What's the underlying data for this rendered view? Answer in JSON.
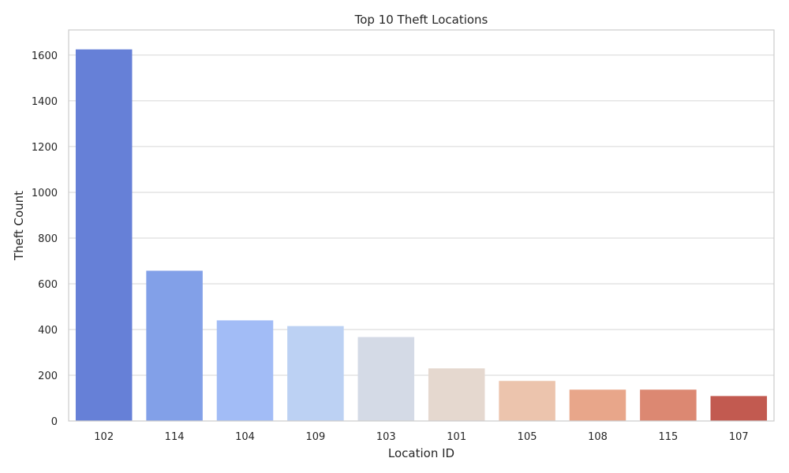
{
  "chart_data": {
    "type": "bar",
    "title": "Top 10 Theft Locations",
    "xlabel": "Location ID",
    "ylabel": "Theft Count",
    "categories": [
      "102",
      "114",
      "104",
      "109",
      "103",
      "101",
      "105",
      "108",
      "115",
      "107"
    ],
    "values": [
      1625,
      657,
      440,
      415,
      367,
      230,
      175,
      137,
      137,
      109
    ],
    "ylim": [
      0,
      1710
    ],
    "yticks": [
      0,
      200,
      400,
      600,
      800,
      1000,
      1200,
      1400,
      1600
    ],
    "grid": true,
    "colors": [
      "#6680d7",
      "#82a0e8",
      "#a2bcf6",
      "#bcd1f3",
      "#d4dae6",
      "#e5d8cf",
      "#ecc4ad",
      "#e8a68a",
      "#dc8872",
      "#c25a50"
    ]
  }
}
